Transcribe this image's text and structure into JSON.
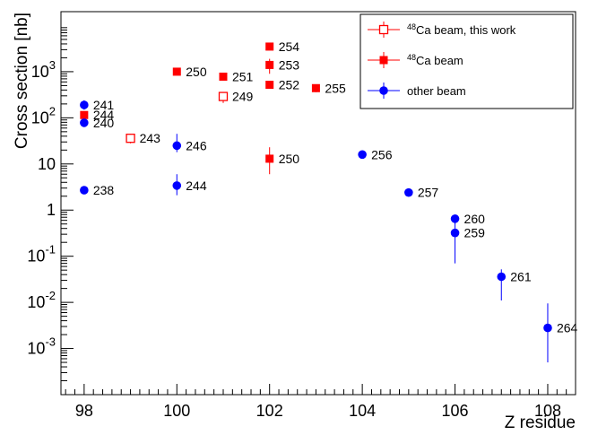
{
  "chart_data": {
    "type": "scatter",
    "xlabel": "Z residue",
    "ylabel": "Cross section [nb]",
    "xlim": [
      97.5,
      108.6
    ],
    "ylim": [
      0.0001,
      20000
    ],
    "yscale": "log",
    "grid": false,
    "legend_position": "top-right",
    "x_ticks": [
      98,
      100,
      102,
      104,
      106,
      108
    ],
    "y_ticks": [
      {
        "value": 0.001,
        "base": "10",
        "exp": "-3"
      },
      {
        "value": 0.01,
        "base": "10",
        "exp": "-2"
      },
      {
        "value": 0.1,
        "base": "10",
        "exp": "-1"
      },
      {
        "value": 1,
        "base": "1",
        "exp": ""
      },
      {
        "value": 10,
        "base": "10",
        "exp": ""
      },
      {
        "value": 100,
        "base": "10",
        "exp": "2"
      },
      {
        "value": 1000,
        "base": "10",
        "exp": "3"
      }
    ],
    "series": [
      {
        "name": "48Ca beam, this work",
        "legend_sup": "48",
        "legend_rest": "Ca beam, this work",
        "color": "#ff0000",
        "marker": "open-square",
        "points": [
          {
            "x": 99,
            "y": 36,
            "ylo": 28,
            "yhi": 45,
            "label": "243"
          },
          {
            "x": 101,
            "y": 290,
            "ylo": 210,
            "yhi": 350,
            "label": "249"
          }
        ]
      },
      {
        "name": "48Ca beam",
        "legend_sup": "48",
        "legend_rest": "Ca beam",
        "color": "#ff0000",
        "marker": "filled-square",
        "points": [
          {
            "x": 98,
            "y": 115,
            "ylo": 105,
            "yhi": 125,
            "label": "244"
          },
          {
            "x": 100,
            "y": 1000,
            "ylo": 930,
            "yhi": 1070,
            "label": "250"
          },
          {
            "x": 101,
            "y": 780,
            "ylo": 680,
            "yhi": 880,
            "label": "251"
          },
          {
            "x": 102,
            "y": 3500,
            "ylo": 3300,
            "yhi": 3700,
            "label": "254"
          },
          {
            "x": 102,
            "y": 1400,
            "ylo": 900,
            "yhi": 1900,
            "label": "253"
          },
          {
            "x": 102,
            "y": 520,
            "ylo": 470,
            "yhi": 570,
            "label": "252"
          },
          {
            "x": 102,
            "y": 13,
            "ylo": 6,
            "yhi": 23,
            "label": "250"
          },
          {
            "x": 103,
            "y": 440,
            "ylo": 360,
            "yhi": 520,
            "label": "255"
          }
        ]
      },
      {
        "name": "other beam",
        "legend_sup": "",
        "legend_rest": "other beam",
        "color": "#0000ff",
        "marker": "filled-circle",
        "points": [
          {
            "x": 98,
            "y": 190,
            "ylo": 150,
            "yhi": 240,
            "label": "241"
          },
          {
            "x": 98,
            "y": 78,
            "ylo": 70,
            "yhi": 86,
            "label": "240"
          },
          {
            "x": 98,
            "y": 2.7,
            "ylo": 2.3,
            "yhi": 3.2,
            "label": "238"
          },
          {
            "x": 100,
            "y": 25,
            "ylo": 18,
            "yhi": 45,
            "label": "246"
          },
          {
            "x": 100,
            "y": 3.4,
            "ylo": 2.1,
            "yhi": 6.0,
            "label": "244"
          },
          {
            "x": 104,
            "y": 16,
            "ylo": 14.5,
            "yhi": 17.5,
            "label": "256"
          },
          {
            "x": 105,
            "y": 2.4,
            "ylo": 2.2,
            "yhi": 2.6,
            "label": "257"
          },
          {
            "x": 106,
            "y": 0.65,
            "ylo": 0.5,
            "yhi": 0.8,
            "label": "260"
          },
          {
            "x": 106,
            "y": 0.32,
            "ylo": 0.07,
            "yhi": 0.55,
            "label": "259"
          },
          {
            "x": 107,
            "y": 0.036,
            "ylo": 0.011,
            "yhi": 0.052,
            "label": "261"
          },
          {
            "x": 108,
            "y": 0.0028,
            "ylo": 0.0005,
            "yhi": 0.0095,
            "label": "264"
          }
        ]
      }
    ]
  }
}
